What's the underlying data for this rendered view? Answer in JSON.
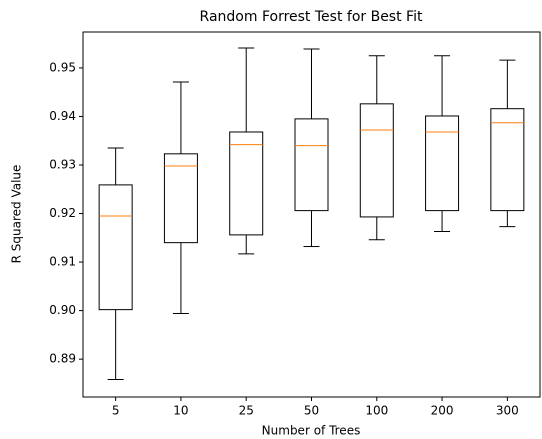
{
  "chart_data": {
    "type": "box",
    "title": "Random Forrest Test for Best Fit",
    "x_label": "Number of Trees",
    "y_label": "R Squared Value",
    "categories": [
      "5",
      "10",
      "25",
      "50",
      "100",
      "200",
      "300"
    ],
    "boxes": [
      {
        "low": 0.8858,
        "q1": 0.9002,
        "median": 0.9195,
        "q3": 0.9259,
        "high": 0.9335
      },
      {
        "low": 0.8994,
        "q1": 0.914,
        "median": 0.9298,
        "q3": 0.9323,
        "high": 0.9471
      },
      {
        "low": 0.9117,
        "q1": 0.9156,
        "median": 0.9342,
        "q3": 0.9368,
        "high": 0.9541
      },
      {
        "low": 0.9132,
        "q1": 0.9206,
        "median": 0.934,
        "q3": 0.9395,
        "high": 0.9539
      },
      {
        "low": 0.9146,
        "q1": 0.9193,
        "median": 0.9372,
        "q3": 0.9426,
        "high": 0.9525
      },
      {
        "low": 0.9163,
        "q1": 0.9206,
        "median": 0.9368,
        "q3": 0.9401,
        "high": 0.9525
      },
      {
        "low": 0.9173,
        "q1": 0.9206,
        "median": 0.9387,
        "q3": 0.9416,
        "high": 0.9516
      }
    ],
    "box_color": "#000000",
    "median_color": "#ff7f0e",
    "ylim": [
      0.8822,
      0.9574
    ],
    "yticks": [
      0.89,
      {
        "value": 0.9,
        "label": "0.90"
      },
      0.91,
      0.92,
      0.93,
      0.94,
      0.95
    ],
    "grid": false
  }
}
